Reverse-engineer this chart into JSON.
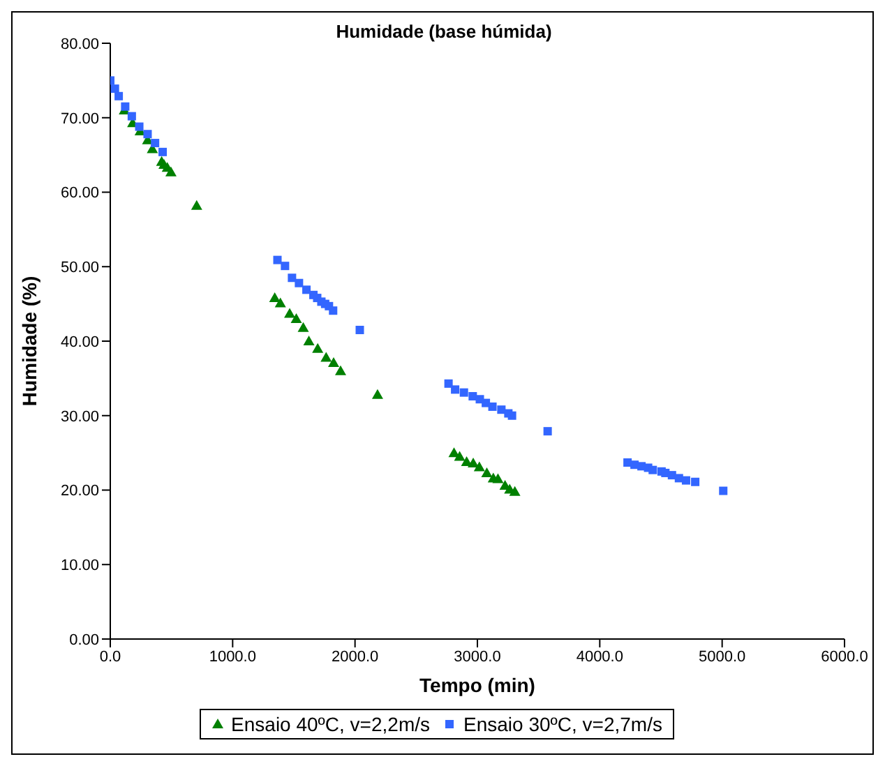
{
  "chart_data": {
    "type": "scatter",
    "title": "Humidade (base húmida)",
    "xlabel": "Tempo (min)",
    "ylabel": "Humidade (%)",
    "xlim": [
      0,
      6000
    ],
    "xticks": [
      {
        "value": 0,
        "label": "0.0"
      },
      {
        "value": 1000,
        "label": "1000.0"
      },
      {
        "value": 2000,
        "label": "2000.0"
      },
      {
        "value": 3000,
        "label": "3000.0"
      },
      {
        "value": 4000,
        "label": "4000.0"
      },
      {
        "value": 5000,
        "label": "5000.0"
      },
      {
        "value": 6000,
        "label": "6000.0"
      }
    ],
    "ylim": [
      0,
      80
    ],
    "yticks": [
      {
        "value": 0,
        "label": "0.00"
      },
      {
        "value": 10,
        "label": "10.00"
      },
      {
        "value": 20,
        "label": "20.00"
      },
      {
        "value": 30,
        "label": "30.00"
      },
      {
        "value": 40,
        "label": "40.00"
      },
      {
        "value": 50,
        "label": "50.00"
      },
      {
        "value": 60,
        "label": "60.00"
      },
      {
        "value": 70,
        "label": "70.00"
      },
      {
        "value": 80,
        "label": "80.00"
      }
    ],
    "grid": false,
    "legend": "bottom",
    "series": [
      {
        "name": "Ensaio 40ºC, v=2,2m/s",
        "color": "#008000",
        "marker": "triangle",
        "x": [
          115,
          183,
          244,
          305,
          344,
          420,
          439,
          466,
          496,
          706,
          1344,
          1390,
          1466,
          1520,
          1577,
          1623,
          1695,
          1764,
          1825,
          1882,
          2184,
          2809,
          2855,
          2912,
          2966,
          3016,
          3077,
          3130,
          3168,
          3226,
          3264,
          3306
        ],
        "values": [
          71.0,
          69.3,
          68.2,
          67.0,
          65.8,
          64.1,
          63.7,
          63.3,
          62.7,
          58.2,
          45.8,
          45.1,
          43.7,
          43.0,
          41.8,
          40.0,
          39.0,
          37.8,
          37.1,
          36.0,
          32.8,
          25.0,
          24.5,
          23.8,
          23.6,
          23.1,
          22.3,
          21.6,
          21.5,
          20.6,
          20.1,
          19.8
        ]
      },
      {
        "name": "Ensaio 30ºC, v=2,7m/s",
        "color": "#3366ff",
        "marker": "square",
        "x": [
          0,
          38,
          69,
          122,
          176,
          237,
          305,
          366,
          428,
          1366,
          1428,
          1485,
          1542,
          1603,
          1660,
          1691,
          1725,
          1756,
          1787,
          1821,
          2039,
          2764,
          2818,
          2890,
          2962,
          3020,
          3069,
          3123,
          3196,
          3253,
          3283,
          3574,
          4227,
          4284,
          4341,
          4395,
          4433,
          4505,
          4536,
          4590,
          4647,
          4705,
          4780,
          5009
        ],
        "values": [
          75.0,
          73.9,
          72.9,
          71.5,
          70.2,
          68.8,
          67.8,
          66.6,
          65.4,
          50.9,
          50.1,
          48.5,
          47.8,
          46.9,
          46.2,
          45.8,
          45.3,
          45.0,
          44.7,
          44.1,
          41.5,
          34.3,
          33.5,
          33.1,
          32.6,
          32.2,
          31.7,
          31.2,
          30.8,
          30.3,
          30.0,
          27.9,
          23.7,
          23.4,
          23.2,
          23.0,
          22.7,
          22.5,
          22.3,
          22.0,
          21.6,
          21.3,
          21.1,
          19.9
        ]
      }
    ]
  }
}
